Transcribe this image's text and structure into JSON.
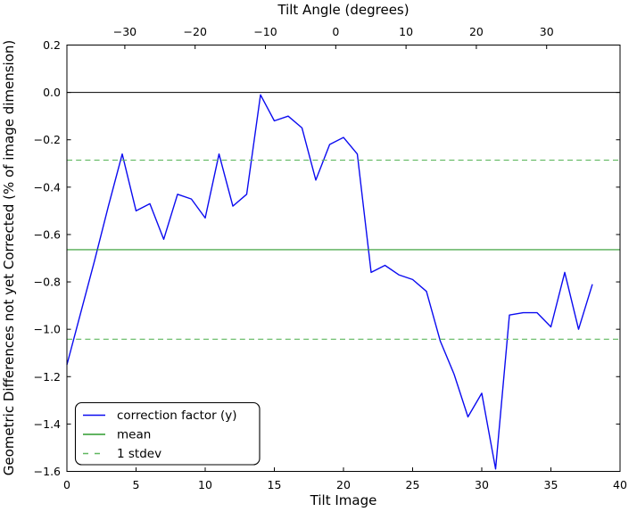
{
  "figure": {
    "background": "#ffffff"
  },
  "legend": {
    "items": [
      {
        "label": "correction factor (y)",
        "color": "#0b0bf0",
        "style": "solid"
      },
      {
        "label": "mean",
        "color": "#2e9b2e",
        "style": "solid"
      },
      {
        "label": "1 stdev",
        "color": "#5fb75f",
        "style": "dashed"
      }
    ]
  },
  "chart_data": {
    "type": "line",
    "title": "Tilt Angle (degrees)",
    "xlabel": "Tilt Image",
    "ylabel": "Geometric Differences not yet Corrected (% of image dimension)",
    "xlim": [
      0,
      40
    ],
    "ylim": [
      -1.6,
      0.2
    ],
    "xticks": [
      0,
      5,
      10,
      15,
      20,
      25,
      30,
      35,
      40
    ],
    "yticks": [
      0.2,
      0.0,
      -0.2,
      -0.4,
      -0.6,
      -0.8,
      -1.0,
      -1.2,
      -1.4,
      -1.6
    ],
    "grid": false,
    "legend_position": "lower left",
    "top_axis": {
      "label": "Tilt Angle (degrees)",
      "ticks": [
        -30,
        -20,
        -10,
        0,
        10,
        20,
        30
      ],
      "deg_per_image": 1.967,
      "image_at_zero_deg": 19.44
    },
    "x": [
      0,
      1,
      2,
      3,
      4,
      5,
      6,
      7,
      8,
      9,
      10,
      11,
      12,
      13,
      14,
      15,
      16,
      17,
      18,
      19,
      20,
      21,
      22,
      23,
      24,
      25,
      26,
      27,
      28,
      29,
      30,
      31,
      32,
      33,
      34,
      35,
      36,
      37,
      38
    ],
    "series": [
      {
        "name": "correction factor (y)",
        "color": "#0b0bf0",
        "style": "solid",
        "values": [
          -1.15,
          -0.93,
          -0.71,
          -0.48,
          -0.26,
          -0.5,
          -0.47,
          -0.62,
          -0.43,
          -0.45,
          -0.53,
          -0.26,
          -0.48,
          -0.43,
          -0.01,
          -0.12,
          -0.1,
          -0.15,
          -0.37,
          -0.22,
          -0.19,
          -0.26,
          -0.76,
          -0.73,
          -0.77,
          -0.79,
          -0.84,
          -1.05,
          -1.19,
          -1.37,
          -1.27,
          -1.59,
          -0.94,
          -0.93,
          -0.93,
          -0.99,
          -0.76,
          -1.0,
          -0.81
        ]
      },
      {
        "name": "mean",
        "color": "#2e9b2e",
        "style": "solid",
        "hline": -0.664
      },
      {
        "name": "1 stdev",
        "color": "#5fb75f",
        "style": "dashed",
        "hlines": [
          -0.286,
          -1.042
        ]
      }
    ],
    "zero_line": {
      "y": 0.0,
      "color": "#000000"
    },
    "stats": {
      "mean": -0.664,
      "stdev": 0.378
    }
  }
}
